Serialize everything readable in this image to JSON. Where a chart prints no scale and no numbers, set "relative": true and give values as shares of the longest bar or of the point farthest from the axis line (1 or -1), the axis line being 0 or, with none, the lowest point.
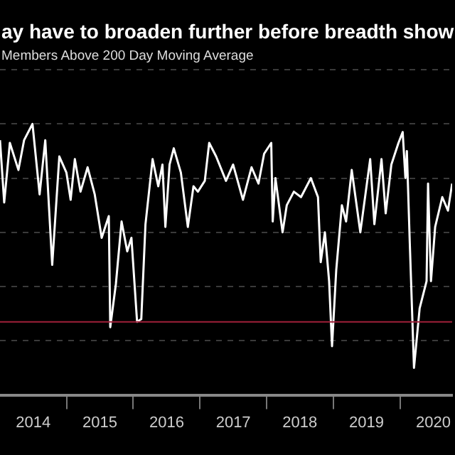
{
  "chart_data": {
    "type": "line",
    "title": "ay have to broaden further before breadth show",
    "subtitle": "Members Above 200 Day Moving Average",
    "relative": true,
    "color": "#ffffff",
    "grid": "y",
    "marker": "none",
    "x": [
      "2014-01-01",
      "2014-01-24",
      "2014-02-24",
      "2014-04-12",
      "2014-05-13",
      "2014-06-28",
      "2014-08-06",
      "2014-09-06",
      "2014-10-14",
      "2014-11-22",
      "2014-12-31",
      "2015-01-23",
      "2015-02-15",
      "2015-03-18",
      "2015-04-26",
      "2015-06-04",
      "2015-07-12",
      "2015-08-20",
      "2015-08-28",
      "2015-09-28",
      "2015-10-29",
      "2015-11-29",
      "2015-12-22",
      "2016-01-22",
      "2016-02-14",
      "2016-03-08",
      "2016-04-16",
      "2016-05-17",
      "2016-06-09",
      "2016-06-25",
      "2016-07-18",
      "2016-08-10",
      "2016-09-18",
      "2016-10-26",
      "2016-11-26",
      "2016-12-20",
      "2017-01-27",
      "2017-02-20",
      "2017-03-30",
      "2017-05-23",
      "2017-07-01",
      "2017-08-24",
      "2017-10-10",
      "2017-11-17",
      "2017-12-18",
      "2018-01-26",
      "2018-02-03",
      "2018-02-18",
      "2018-03-29",
      "2018-04-21",
      "2018-05-30",
      "2018-07-08",
      "2018-08-31",
      "2018-10-09",
      "2018-10-24",
      "2018-11-16",
      "2018-12-09",
      "2018-12-25",
      "2019-01-17",
      "2019-02-17",
      "2019-03-12",
      "2019-04-12",
      "2019-05-29",
      "2019-07-22",
      "2019-08-14",
      "2019-09-22",
      "2019-10-15",
      "2019-11-15",
      "2019-12-24",
      "2020-01-16",
      "2020-01-31",
      "2020-02-08",
      "2020-02-24",
      "2020-03-18",
      "2020-04-18",
      "2020-05-26",
      "2020-06-03",
      "2020-06-19",
      "2020-07-12",
      "2020-08-20",
      "2020-09-20",
      "2020-10-13"
    ],
    "values": [
      0.94,
      0.71,
      0.93,
      0.83,
      0.94,
      1.0,
      0.74,
      0.94,
      0.48,
      0.88,
      0.82,
      0.72,
      0.87,
      0.75,
      0.84,
      0.74,
      0.58,
      0.66,
      0.25,
      0.41,
      0.64,
      0.53,
      0.58,
      0.27,
      0.28,
      0.63,
      0.87,
      0.77,
      0.85,
      0.62,
      0.85,
      0.91,
      0.82,
      0.62,
      0.77,
      0.75,
      0.79,
      0.93,
      0.88,
      0.79,
      0.85,
      0.72,
      0.84,
      0.78,
      0.89,
      0.93,
      0.64,
      0.8,
      0.6,
      0.7,
      0.75,
      0.73,
      0.8,
      0.73,
      0.49,
      0.6,
      0.42,
      0.18,
      0.46,
      0.7,
      0.64,
      0.83,
      0.6,
      0.87,
      0.63,
      0.87,
      0.67,
      0.85,
      0.93,
      0.97,
      0.8,
      0.9,
      0.56,
      0.1,
      0.32,
      0.42,
      0.78,
      0.42,
      0.62,
      0.73,
      0.68,
      0.78
    ],
    "xlim": [
      "2014-01-01",
      "2020-10-13"
    ],
    "xticks": [
      {
        "value": "2014-07-02",
        "label": "2014"
      },
      {
        "value": "2015-01-01",
        "label": null
      },
      {
        "value": "2015-07-02",
        "label": "2015"
      },
      {
        "value": "2016-01-01",
        "label": null
      },
      {
        "value": "2016-07-02",
        "label": "2016"
      },
      {
        "value": "2017-01-01",
        "label": null
      },
      {
        "value": "2017-07-02",
        "label": "2017"
      },
      {
        "value": "2018-01-01",
        "label": null
      },
      {
        "value": "2018-07-02",
        "label": "2018"
      },
      {
        "value": "2019-01-01",
        "label": null
      },
      {
        "value": "2019-07-02",
        "label": "2019"
      },
      {
        "value": "2020-01-01",
        "label": null
      },
      {
        "value": "2020-07-02",
        "label": "2020"
      }
    ],
    "ref_lines": [
      {
        "axis": "y",
        "value": 0.27,
        "color": "#a0203a"
      }
    ]
  }
}
